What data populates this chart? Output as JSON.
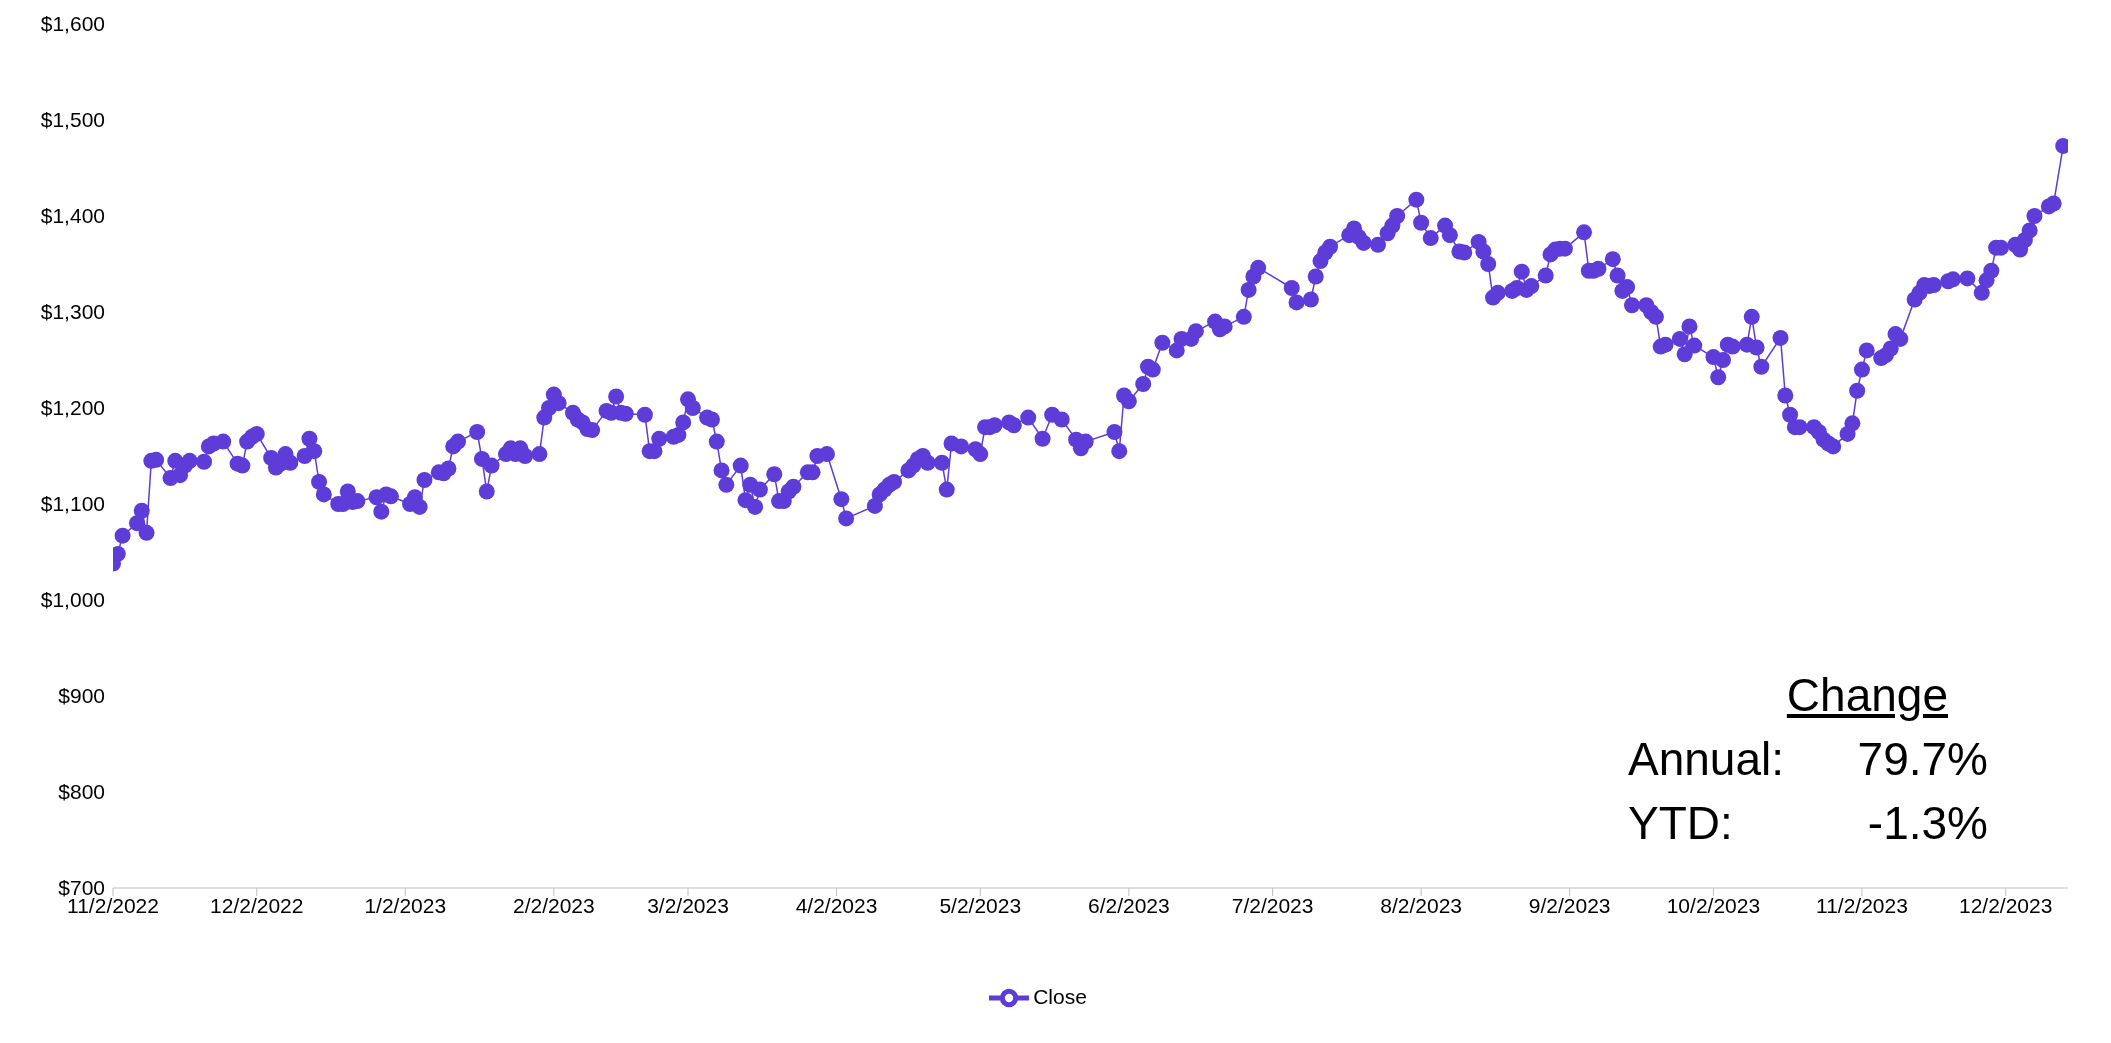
{
  "chart_data": {
    "type": "line",
    "x": [
      "2022-11-02",
      "2022-11-03",
      "2022-11-04",
      "2022-11-07",
      "2022-11-08",
      "2022-11-09",
      "2022-11-10",
      "2022-11-11",
      "2022-11-14",
      "2022-11-15",
      "2022-11-16",
      "2022-11-17",
      "2022-11-18",
      "2022-11-21",
      "2022-11-22",
      "2022-11-23",
      "2022-11-25",
      "2022-11-28",
      "2022-11-29",
      "2022-11-30",
      "2022-12-01",
      "2022-12-02",
      "2022-12-05",
      "2022-12-06",
      "2022-12-07",
      "2022-12-08",
      "2022-12-09",
      "2022-12-12",
      "2022-12-13",
      "2022-12-14",
      "2022-12-15",
      "2022-12-16",
      "2022-12-19",
      "2022-12-20",
      "2022-12-21",
      "2022-12-22",
      "2022-12-23",
      "2022-12-27",
      "2022-12-28",
      "2022-12-29",
      "2022-12-30",
      "2023-01-03",
      "2023-01-04",
      "2023-01-05",
      "2023-01-06",
      "2023-01-09",
      "2023-01-10",
      "2023-01-11",
      "2023-01-12",
      "2023-01-13",
      "2023-01-17",
      "2023-01-18",
      "2023-01-19",
      "2023-01-20",
      "2023-01-23",
      "2023-01-24",
      "2023-01-25",
      "2023-01-26",
      "2023-01-27",
      "2023-01-30",
      "2023-01-31",
      "2023-02-01",
      "2023-02-02",
      "2023-02-03",
      "2023-02-06",
      "2023-02-07",
      "2023-02-08",
      "2023-02-09",
      "2023-02-10",
      "2023-02-13",
      "2023-02-14",
      "2023-02-15",
      "2023-02-16",
      "2023-02-17",
      "2023-02-21",
      "2023-02-22",
      "2023-02-23",
      "2023-02-24",
      "2023-02-27",
      "2023-02-28",
      "2023-03-01",
      "2023-03-02",
      "2023-03-03",
      "2023-03-06",
      "2023-03-07",
      "2023-03-08",
      "2023-03-09",
      "2023-03-10",
      "2023-03-13",
      "2023-03-14",
      "2023-03-15",
      "2023-03-16",
      "2023-03-17",
      "2023-03-20",
      "2023-03-21",
      "2023-03-22",
      "2023-03-23",
      "2023-03-24",
      "2023-03-27",
      "2023-03-28",
      "2023-03-29",
      "2023-03-31",
      "2023-04-03",
      "2023-04-04",
      "2023-04-10",
      "2023-04-11",
      "2023-04-12",
      "2023-04-13",
      "2023-04-14",
      "2023-04-17",
      "2023-04-18",
      "2023-04-19",
      "2023-04-20",
      "2023-04-21",
      "2023-04-24",
      "2023-04-25",
      "2023-04-26",
      "2023-04-28",
      "2023-05-01",
      "2023-05-02",
      "2023-05-03",
      "2023-05-04",
      "2023-05-05",
      "2023-05-08",
      "2023-05-09",
      "2023-05-12",
      "2023-05-15",
      "2023-05-17",
      "2023-05-19",
      "2023-05-22",
      "2023-05-23",
      "2023-05-24",
      "2023-05-30",
      "2023-05-31",
      "2023-06-01",
      "2023-06-02",
      "2023-06-05",
      "2023-06-06",
      "2023-06-07",
      "2023-06-09",
      "2023-06-12",
      "2023-06-13",
      "2023-06-15",
      "2023-06-16",
      "2023-06-20",
      "2023-06-21",
      "2023-06-22",
      "2023-06-26",
      "2023-06-27",
      "2023-06-28",
      "2023-06-29",
      "2023-07-06",
      "2023-07-07",
      "2023-07-10",
      "2023-07-11",
      "2023-07-12",
      "2023-07-13",
      "2023-07-14",
      "2023-07-18",
      "2023-07-19",
      "2023-07-20",
      "2023-07-21",
      "2023-07-24",
      "2023-07-26",
      "2023-07-27",
      "2023-07-28",
      "2023-08-01",
      "2023-08-02",
      "2023-08-04",
      "2023-08-07",
      "2023-08-08",
      "2023-08-10",
      "2023-08-11",
      "2023-08-14",
      "2023-08-15",
      "2023-08-16",
      "2023-08-17",
      "2023-08-18",
      "2023-08-21",
      "2023-08-22",
      "2023-08-23",
      "2023-08-24",
      "2023-08-25",
      "2023-08-28",
      "2023-08-29",
      "2023-08-30",
      "2023-08-31",
      "2023-09-01",
      "2023-09-05",
      "2023-09-06",
      "2023-09-07",
      "2023-09-08",
      "2023-09-11",
      "2023-09-12",
      "2023-09-13",
      "2023-09-14",
      "2023-09-15",
      "2023-09-18",
      "2023-09-19",
      "2023-09-20",
      "2023-09-21",
      "2023-09-22",
      "2023-09-25",
      "2023-09-26",
      "2023-09-27",
      "2023-09-28",
      "2023-10-02",
      "2023-10-03",
      "2023-10-04",
      "2023-10-05",
      "2023-10-06",
      "2023-10-09",
      "2023-10-10",
      "2023-10-11",
      "2023-10-12",
      "2023-10-16",
      "2023-10-17",
      "2023-10-18",
      "2023-10-19",
      "2023-10-20",
      "2023-10-23",
      "2023-10-24",
      "2023-10-25",
      "2023-10-26",
      "2023-10-27",
      "2023-10-30",
      "2023-10-31",
      "2023-11-01",
      "2023-11-02",
      "2023-11-03",
      "2023-11-06",
      "2023-11-07",
      "2023-11-08",
      "2023-11-09",
      "2023-11-10",
      "2023-11-13",
      "2023-11-14",
      "2023-11-15",
      "2023-11-16",
      "2023-11-17",
      "2023-11-20",
      "2023-11-21",
      "2023-11-24",
      "2023-11-27",
      "2023-11-28",
      "2023-11-29",
      "2023-11-30",
      "2023-12-01",
      "2023-12-04",
      "2023-12-05",
      "2023-12-06",
      "2023-12-07",
      "2023-12-08",
      "2023-12-11",
      "2023-12-12",
      "2023-12-14"
    ],
    "series": [
      {
        "name": "Close",
        "color": "#5d3cd8",
        "values": [
          1038,
          1048,
          1067,
          1080,
          1093,
          1070,
          1145,
          1146,
          1127,
          1145,
          1130,
          1140,
          1145,
          1144,
          1160,
          1163,
          1165,
          1142,
          1140,
          1165,
          1170,
          1173,
          1148,
          1138,
          1142,
          1152,
          1143,
          1150,
          1168,
          1155,
          1123,
          1110,
          1100,
          1100,
          1113,
          1102,
          1103,
          1107,
          1092,
          1110,
          1108,
          1100,
          1107,
          1097,
          1125,
          1133,
          1132,
          1137,
          1160,
          1165,
          1175,
          1147,
          1113,
          1140,
          1152,
          1158,
          1152,
          1158,
          1150,
          1152,
          1190,
          1200,
          1214,
          1205,
          1195,
          1188,
          1185,
          1178,
          1177,
          1197,
          1195,
          1212,
          1195,
          1194,
          1193,
          1155,
          1155,
          1168,
          1170,
          1172,
          1185,
          1209,
          1200,
          1190,
          1188,
          1165,
          1135,
          1120,
          1140,
          1104,
          1120,
          1097,
          1115,
          1131,
          1103,
          1103,
          1113,
          1118,
          1133,
          1133,
          1150,
          1152,
          1105,
          1085,
          1098,
          1110,
          1115,
          1120,
          1123,
          1135,
          1140,
          1147,
          1150,
          1143,
          1143,
          1115,
          1163,
          1160,
          1157,
          1152,
          1180,
          1180,
          1182,
          1185,
          1182,
          1190,
          1168,
          1193,
          1188,
          1167,
          1158,
          1165,
          1175,
          1155,
          1213,
          1207,
          1225,
          1243,
          1240,
          1268,
          1260,
          1272,
          1272,
          1280,
          1290,
          1282,
          1285,
          1295,
          1323,
          1337,
          1346,
          1325,
          1310,
          1313,
          1337,
          1353,
          1362,
          1368,
          1380,
          1387,
          1378,
          1372,
          1370,
          1382,
          1390,
          1400,
          1417,
          1393,
          1377,
          1390,
          1380,
          1363,
          1362,
          1373,
          1363,
          1350,
          1315,
          1320,
          1322,
          1325,
          1342,
          1323,
          1327,
          1338,
          1360,
          1365,
          1366,
          1366,
          1383,
          1343,
          1343,
          1345,
          1355,
          1338,
          1322,
          1326,
          1307,
          1307,
          1300,
          1295,
          1264,
          1266,
          1272,
          1256,
          1285,
          1265,
          1253,
          1232,
          1250,
          1266,
          1264,
          1266,
          1295,
          1263,
          1243,
          1273,
          1213,
          1193,
          1180,
          1180,
          1180,
          1175,
          1167,
          1163,
          1160,
          1173,
          1184,
          1218,
          1240,
          1260,
          1252,
          1255,
          1262,
          1277,
          1272,
          1313,
          1320,
          1328,
          1327,
          1328,
          1332,
          1334,
          1335,
          1320,
          1333,
          1343,
          1367,
          1367,
          1370,
          1365,
          1375,
          1385,
          1400,
          1410,
          1413,
          1473
        ]
      }
    ],
    "xlim": [
      "2022-11-02",
      "2023-12-15"
    ],
    "xticks": [
      {
        "value": "2022-11-02",
        "label": "11/2/2022"
      },
      {
        "value": "2022-12-02",
        "label": "12/2/2022"
      },
      {
        "value": "2023-01-02",
        "label": "1/2/2023"
      },
      {
        "value": "2023-02-02",
        "label": "2/2/2023"
      },
      {
        "value": "2023-03-02",
        "label": "3/2/2023"
      },
      {
        "value": "2023-04-02",
        "label": "4/2/2023"
      },
      {
        "value": "2023-05-02",
        "label": "5/2/2023"
      },
      {
        "value": "2023-06-02",
        "label": "6/2/2023"
      },
      {
        "value": "2023-07-02",
        "label": "7/2/2023"
      },
      {
        "value": "2023-08-02",
        "label": "8/2/2023"
      },
      {
        "value": "2023-09-02",
        "label": "9/2/2023"
      },
      {
        "value": "2023-10-02",
        "label": "10/2/2023"
      },
      {
        "value": "2023-11-02",
        "label": "11/2/2023"
      },
      {
        "value": "2023-12-02",
        "label": "12/2/2023"
      }
    ],
    "ylim": [
      700,
      1600
    ],
    "yticks": [
      {
        "value": 700,
        "label": "$700"
      },
      {
        "value": 800,
        "label": "$800"
      },
      {
        "value": 900,
        "label": "$900"
      },
      {
        "value": 1000,
        "label": "$1,000"
      },
      {
        "value": 1100,
        "label": "$1,100"
      },
      {
        "value": 1200,
        "label": "$1,200"
      },
      {
        "value": 1300,
        "label": "$1,300"
      },
      {
        "value": 1400,
        "label": "$1,400"
      },
      {
        "value": 1500,
        "label": "$1,500"
      },
      {
        "value": 1600,
        "label": "$1,600"
      }
    ],
    "annotations": [
      "Change",
      "Annual:",
      "79.7%",
      "YTD:",
      "-1.3%"
    ],
    "marker": "circle",
    "line_style": "solid",
    "legend": "bottom"
  }
}
